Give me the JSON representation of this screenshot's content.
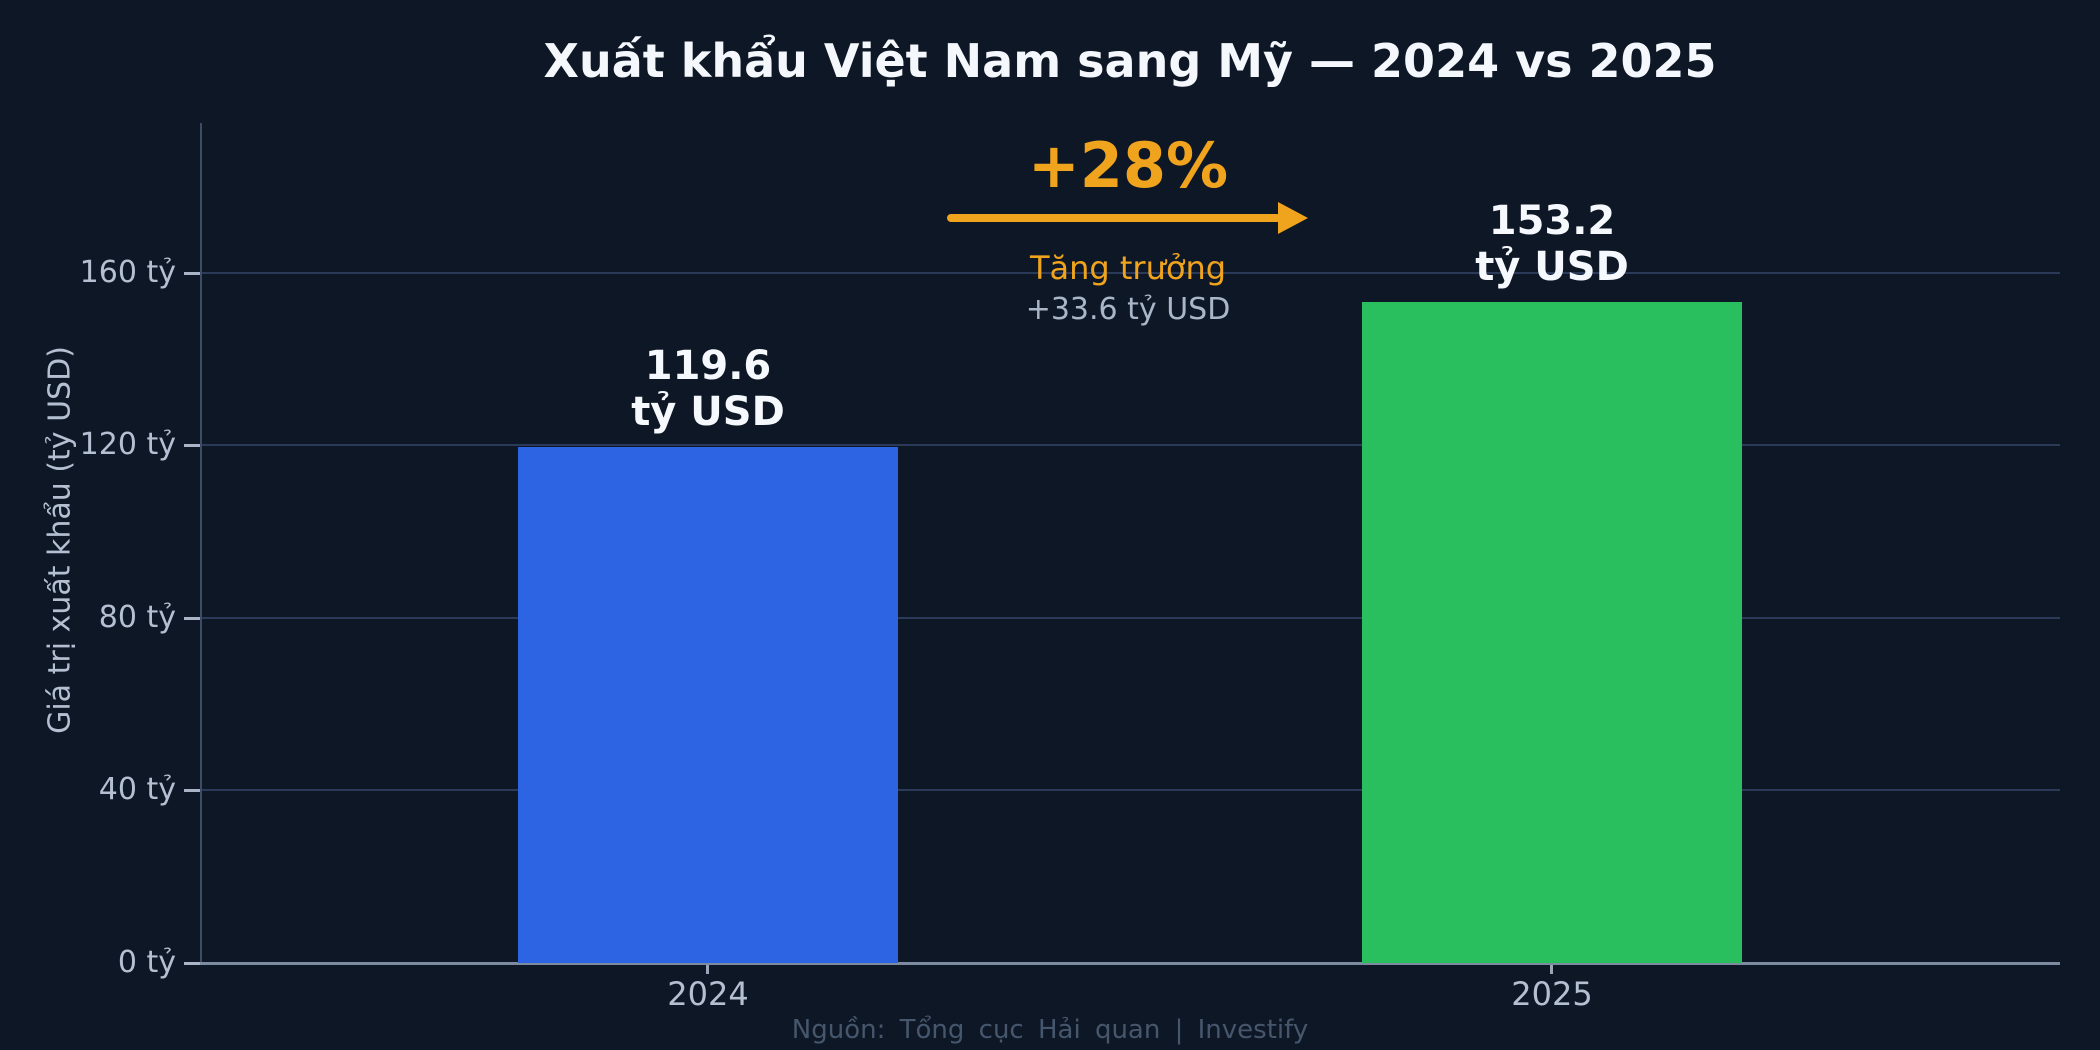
{
  "chart_data": {
    "type": "bar",
    "title": "Xuất khẩu Việt Nam sang Mỹ — 2024 vs 2025",
    "categories": [
      "2024",
      "2025"
    ],
    "values": [
      119.6,
      153.2
    ],
    "bar_colors": [
      "#2d64e4",
      "#2abf5e"
    ],
    "bar_value_labels": [
      {
        "value": "119.6",
        "unit": "tỷ USD"
      },
      {
        "value": "153.2",
        "unit": "tỷ USD"
      }
    ],
    "xlabel": "",
    "ylabel": "Giá trị xuất khẩu (tỷ USD)",
    "ylim": [
      0,
      195
    ],
    "grid": true,
    "yticks": [
      {
        "value": 0,
        "label": "0 tỷ"
      },
      {
        "value": 40,
        "label": "40 tỷ"
      },
      {
        "value": 80,
        "label": "80 tỷ"
      },
      {
        "value": 120,
        "label": "120 tỷ"
      },
      {
        "value": 160,
        "label": "160 tỷ"
      }
    ],
    "annotation": {
      "percent": "+28%",
      "label": "Tăng trưởng",
      "delta": "+33.6 tỷ USD",
      "accent_color": "#f0a41e",
      "delta_color": "#a9b6c8"
    },
    "source": "Nguồn: Tổng cục Hải quan  |  Investify",
    "background_color": "#0e1726",
    "gridline_color": "#2b3a58"
  }
}
